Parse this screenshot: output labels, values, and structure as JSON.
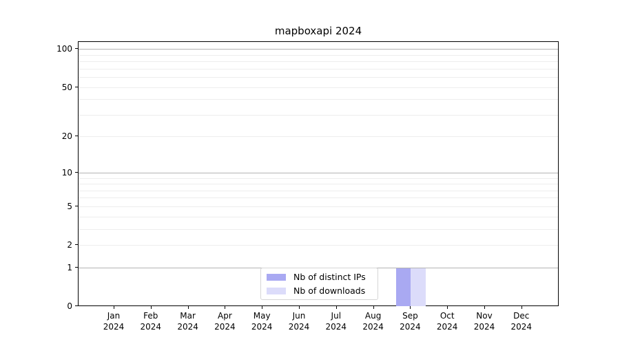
{
  "chart_data": {
    "type": "bar",
    "title": "mapboxapi 2024",
    "categories": [
      "Jan 2024",
      "Feb 2024",
      "Mar 2024",
      "Apr 2024",
      "May 2024",
      "Jun 2024",
      "Jul 2024",
      "Aug 2024",
      "Sep 2024",
      "Oct 2024",
      "Nov 2024",
      "Dec 2024"
    ],
    "series": [
      {
        "name": "Nb of distinct IPs",
        "color": "#a9a9f2",
        "values": [
          0,
          0,
          0,
          0,
          0,
          0,
          0,
          0,
          1,
          0,
          0,
          0
        ]
      },
      {
        "name": "Nb of downloads",
        "color": "#dcdcfa",
        "values": [
          0,
          0,
          0,
          0,
          0,
          0,
          0,
          0,
          1,
          0,
          0,
          0
        ]
      }
    ],
    "xlabel": "",
    "ylabel": "",
    "yscale": "log1p",
    "ylim": [
      0,
      115
    ],
    "yticks": [
      0,
      1,
      2,
      5,
      10,
      20,
      50,
      100
    ],
    "yticks_minor": [
      3,
      4,
      6,
      7,
      8,
      9,
      30,
      40,
      60,
      70,
      80,
      90
    ],
    "gridline_major_at": [
      1,
      10,
      100
    ],
    "grid": "horizontal",
    "grid_major_color": "#b3b3b3",
    "grid_minor_color": "#ededed",
    "legend_position": "lower center"
  }
}
